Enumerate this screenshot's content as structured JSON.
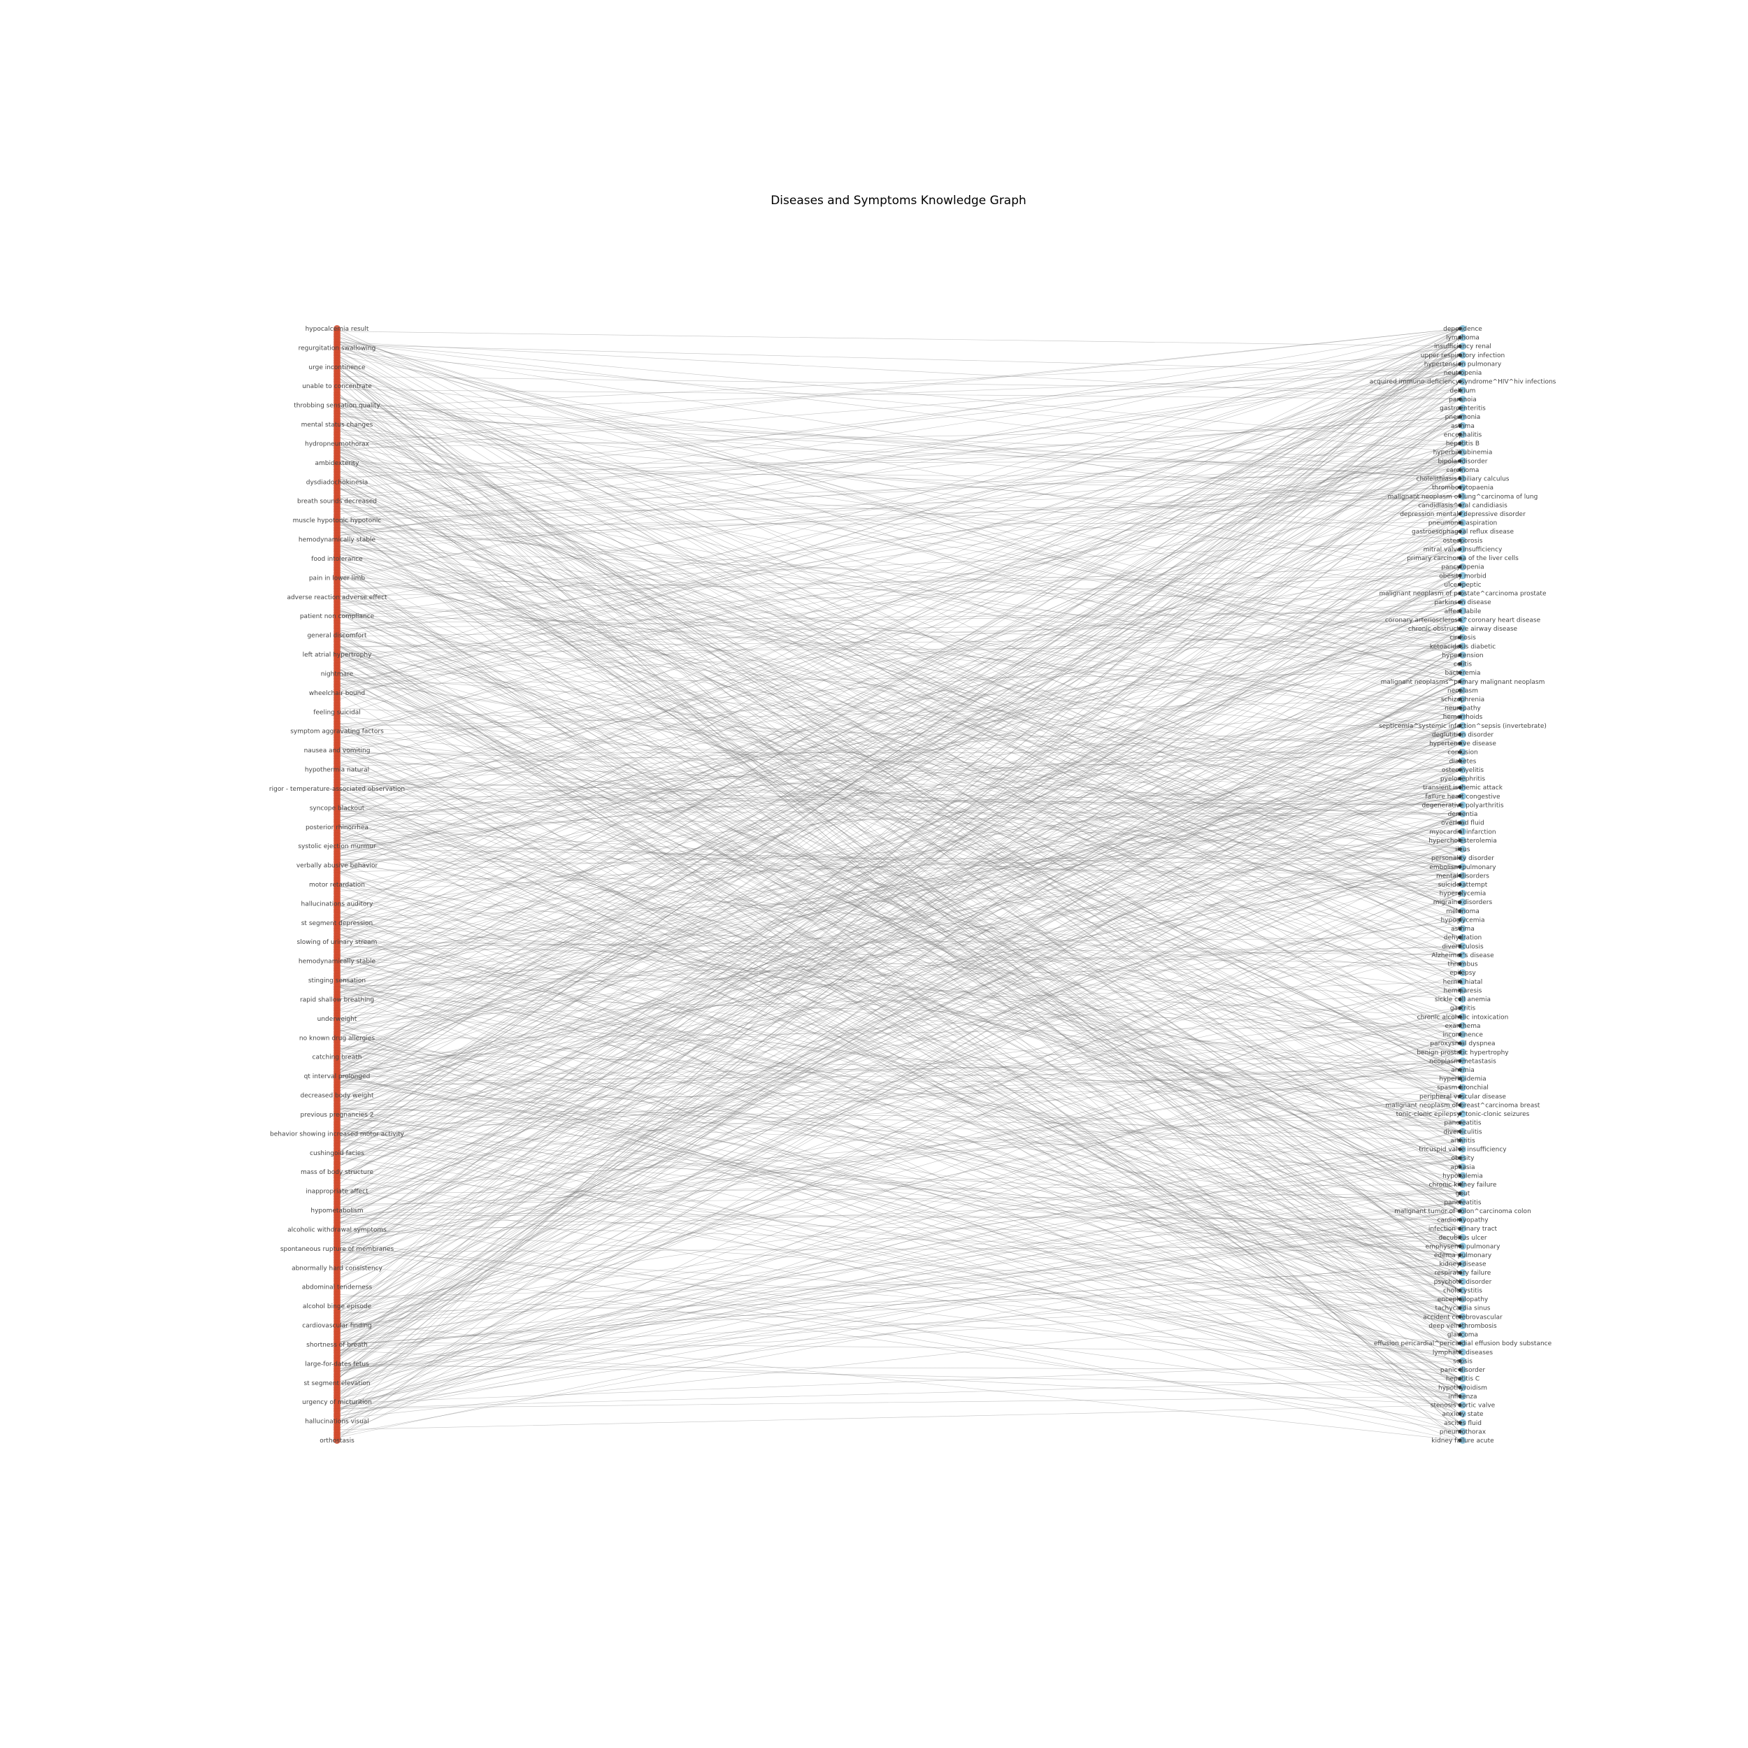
{
  "title": "Diseases and Symptoms Knowledge Graph",
  "colors": {
    "symptom_node": "#d1492a",
    "disease_node": "#8cc3dc",
    "edge": "#7a7a7a",
    "label": "#444444"
  },
  "symptoms": [
    "hypocalcemia result",
    "regurgitation swallowing",
    "urge incontinence",
    "unable to concentrate",
    "throbbing sensation quality",
    "mental status changes",
    "hydropneumothorax",
    "ambidexterity",
    "dysdiadochokinesia",
    "breath sounds decreased",
    "muscle hypotonic hypotonic",
    "hemodynamically stable",
    "food intolerance",
    "pain in lower limb",
    "adverse reaction adverse effect",
    "patient non compliance",
    "general discomfort",
    "left atrial hypertrophy",
    "nightmare",
    "wheelchair bound",
    "feeling suicidal",
    "symptom aggravating factors",
    "nausea and vomiting",
    "hypothermia natural",
    "rigor - temperature-associated observation",
    "syncope blackout",
    "posterior rhinorrhea",
    "systolic ejection murmur",
    "verbally abusive behavior",
    "motor retardation",
    "hallucinations auditory",
    "st segment depression",
    "slowing of urinary stream",
    "hemodynamically stable",
    "stinging sensation",
    "rapid shallow breathing",
    "underweight",
    "no known drug allergies",
    "catching breath",
    "qt interval prolonged",
    "decreased body weight",
    "previous pregnancies 2",
    "behavior showing increased motor activity",
    "cushingoid facies",
    "mass of body structure",
    "inappropriate affect",
    "hypometabolism",
    "alcoholic withdrawal symptoms",
    "spontaneous rupture of membranes",
    "abnormally hard consistency",
    "abdominal tenderness",
    "alcohol binge episode",
    "cardiovascular finding",
    "shortness of breath",
    "large-for-dates fetus",
    "st segment elevation",
    "urgency of micturition",
    "hallucinations visual",
    "orthostasis"
  ],
  "diseases": [
    "dependence",
    "lymphoma",
    "insufficiency renal",
    "upper respiratory infection",
    "hypertension pulmonary",
    "neutropenia",
    "acquired immuno-deficiency syndrome^HIV^hiv infections",
    "delirium",
    "paranoia",
    "gastroenteritis",
    "pneumonia",
    "asthma",
    "encephalitis",
    "hepatitis B",
    "hyperbilirubinemia",
    "bipolar disorder",
    "carcinoma",
    "cholelithiasis^biliary calculus",
    "thrombocytopaenia",
    "malignant neoplasm of lung^carcinoma of lung",
    "candidiasis^oral candidiasis",
    "depression mental^depressive disorder",
    "pneumonia aspiration",
    "gastroesophageal reflux disease",
    "osteoporosis",
    "mitral valve insufficiency",
    "primary carcinoma of the liver cells",
    "pancytopenia",
    "obesity morbid",
    "ulcer peptic",
    "malignant neoplasm of prostate^carcinoma prostate",
    "parkinson disease",
    "affect labile",
    "coronary arteriosclerosis^coronary heart disease",
    "chronic obstructive airway disease",
    "cirrhosis",
    "ketoacidosis diabetic",
    "hypertension",
    "colitis",
    "bacteremia",
    "malignant neoplasms^primary malignant neoplasm",
    "neoplasm",
    "schizophrenia",
    "neuropathy",
    "hemorrhoids",
    "septicemia^systemic infection^sepsis (invertebrate)",
    "deglutition disorder",
    "hypertensive disease",
    "confusion",
    "diabetes",
    "osteomyelitis",
    "pyelonephritis",
    "transient ischemic attack",
    "failure heart congestive",
    "degenerative polyarthritis",
    "dementia",
    "overload fluid",
    "myocardial infarction",
    "hypercholesterolemia",
    "ileus",
    "personality disorder",
    "embolism pulmonary",
    "mental disorders",
    "suicide attempt",
    "hyperglycemia",
    "migraine disorders",
    "melanoma",
    "hypoglycemia",
    "asthma",
    "dehydration",
    "diverticulosis",
    "Alzheimer's disease",
    "thrombus",
    "epilepsy",
    "hernia hiatal",
    "hemiparesis",
    "sickle cell anemia",
    "gastritis",
    "chronic alcoholic intoxication",
    "exanthema",
    "incontinence",
    "paroxysmal dyspnea",
    "benign prostatic hypertrophy",
    "neoplasm metastasis",
    "anemia",
    "hyperlipidemia",
    "spasm bronchial",
    "peripheral vascular disease",
    "malignant neoplasm of breast^carcinoma breast",
    "tonic-clonic epilepsy^tonic-clonic seizures",
    "pancreatitis",
    "diverticulitis",
    "arthritis",
    "tricuspid valve insufficiency",
    "obesity",
    "aphasia",
    "hypokalemia",
    "chronic kidney failure",
    "gout",
    "pancreatitis",
    "malignant tumor of colon^carcinoma colon",
    "cardiomyopathy",
    "infection urinary tract",
    "decubitus ulcer",
    "emphysema pulmonary",
    "edema pulmonary",
    "kidney disease",
    "respiratory failure",
    "psychotic disorder",
    "cholecystitis",
    "encephalopathy",
    "tachycardia sinus",
    "accident cerebrovascular",
    "deep vein thrombosis",
    "glaucoma",
    "effusion pericardial^pericardial effusion body substance",
    "lymphatic diseases",
    "sepsis",
    "panic disorder",
    "hepatitis C",
    "hypothyroidism",
    "influenza",
    "stenosis aortic valve",
    "anxiety state",
    "ascites fluid",
    "pneumothorax",
    "kidney failure acute"
  ]
}
